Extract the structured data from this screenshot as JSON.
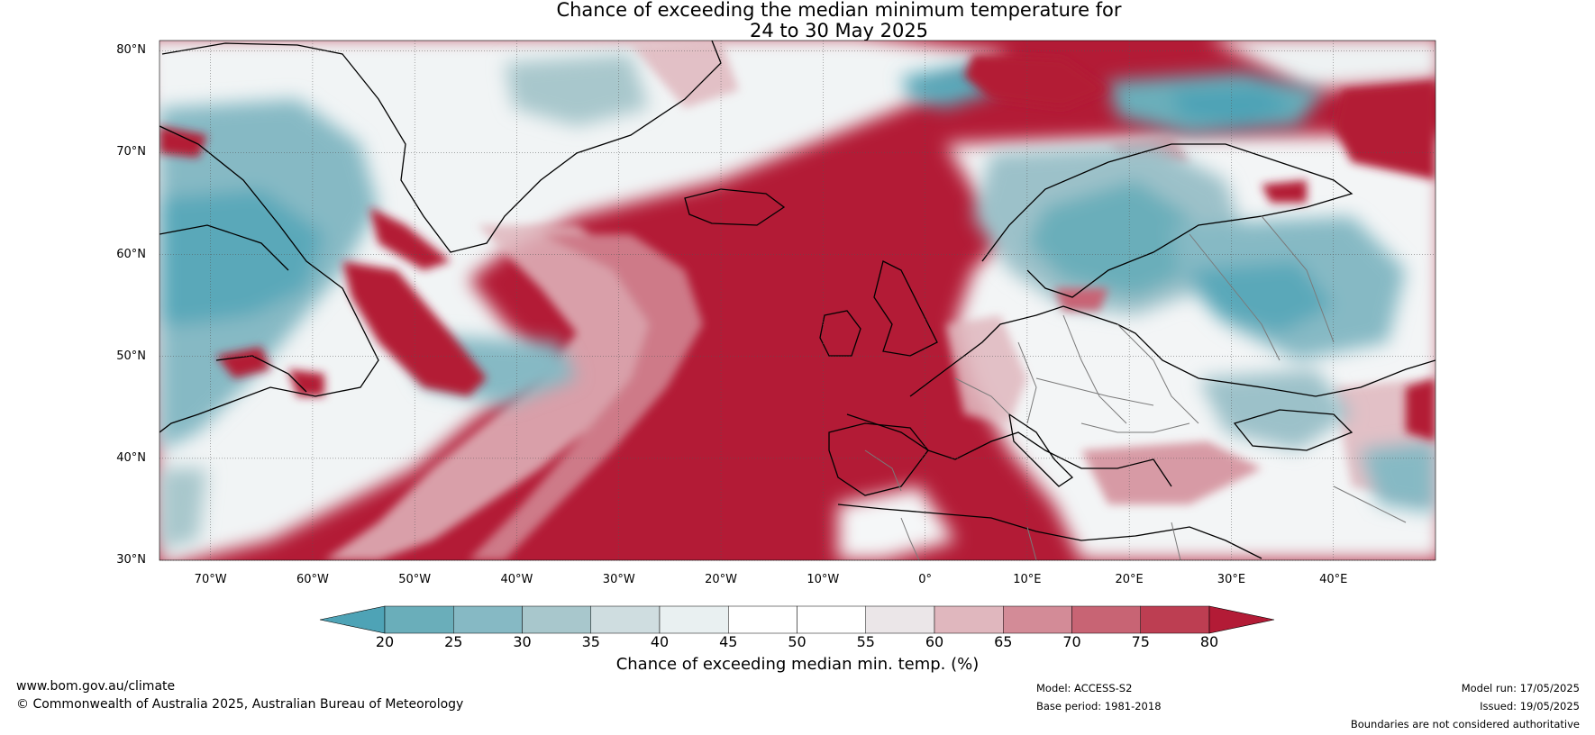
{
  "title": {
    "line1": "Chance of exceeding the median minimum temperature for",
    "line2": "24 to 30 May 2025"
  },
  "map": {
    "lat_labels": [
      "80°N",
      "70°N",
      "60°N",
      "50°N",
      "40°N",
      "30°N"
    ],
    "lon_labels": [
      "70°W",
      "60°W",
      "50°W",
      "40°W",
      "30°W",
      "20°W",
      "10°W",
      "0°",
      "10°E",
      "20°E",
      "30°E",
      "40°E"
    ],
    "lat_range": [
      30,
      81
    ],
    "lon_range": [
      -75,
      50
    ],
    "gridlines": true,
    "colors": {
      "below": "#4ea3b6",
      "neutral": "#ffffff",
      "above": "#b31b36"
    }
  },
  "colorbar": {
    "ticks": [
      "20",
      "25",
      "30",
      "35",
      "40",
      "45",
      "50",
      "55",
      "60",
      "65",
      "70",
      "75",
      "80"
    ],
    "colors": [
      "#4ea3b6",
      "#6aaeba",
      "#86b9c4",
      "#a8c7cc",
      "#cfdde0",
      "#e9f0f1",
      "#ffffff",
      "#ffffff",
      "#ebe6e8",
      "#e0b7be",
      "#d38b97",
      "#c86474",
      "#bd3e52",
      "#b31b36"
    ],
    "label": "Chance of exceeding median min. temp. (%)"
  },
  "footer": {
    "website": "www.bom.gov.au/climate",
    "copyright": "© Commonwealth of Australia 2025, Australian Bureau of Meteorology",
    "model": "Model: ACCESS-S2",
    "base_period": "Base period: 1981-2018",
    "model_run": "Model run: 17/05/2025",
    "issued": "Issued: 19/05/2025",
    "disclaimer": "Boundaries are not considered authoritative"
  }
}
